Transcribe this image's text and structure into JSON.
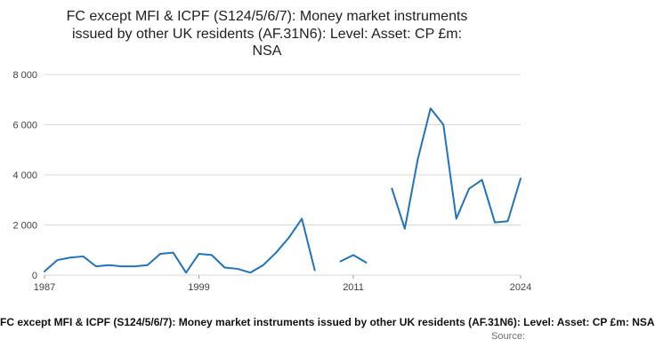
{
  "page": {
    "title": "FC except MFI & ICPF (S124/5/6/7): Money market instruments issued by other UK residents (AF.31N6): Level: Asset: CP £m: NSA",
    "footer_series_label": "FC except MFI & ICPF (S124/5/6/7): Money market instruments issued by other UK residents (AF.31N6): Level: Asset: CP £m: NSA",
    "source_label": "Source:"
  },
  "chart_data": {
    "type": "line",
    "title": "FC except MFI & ICPF (S124/5/6/7): Money market instruments issued by other UK residents (AF.31N6): Level: Asset: CP £m: NSA",
    "xlabel": "",
    "ylabel": "",
    "x": [
      1987,
      1988,
      1989,
      1990,
      1991,
      1992,
      1993,
      1994,
      1995,
      1996,
      1997,
      1998,
      1999,
      2000,
      2001,
      2002,
      2003,
      2004,
      2005,
      2006,
      2007,
      2008,
      2009,
      2010,
      2011,
      2012,
      2013,
      2014,
      2015,
      2016,
      2017,
      2018,
      2019,
      2020,
      2021,
      2022,
      2023,
      2024
    ],
    "series": [
      {
        "name": "Money market instruments issued by other UK residents (AF.31N6): Level: Asset: CP £m: NSA",
        "values": [
          150,
          600,
          700,
          750,
          350,
          400,
          350,
          350,
          400,
          850,
          900,
          100,
          850,
          800,
          300,
          250,
          100,
          400,
          900,
          1500,
          2250,
          200,
          null,
          550,
          800,
          500,
          null,
          3450,
          1850,
          4600,
          6650,
          6000,
          2250,
          3450,
          3800,
          2100,
          2150,
          3850
        ]
      }
    ],
    "ylim": [
      0,
      8000
    ],
    "yticks": [
      0,
      2000,
      4000,
      6000,
      8000
    ],
    "ytick_labels": [
      "0",
      "2 000",
      "4 000",
      "6 000",
      "8 000"
    ],
    "xtick_years": [
      1987,
      1999,
      2011,
      2024
    ],
    "grid": true,
    "legend": "none",
    "line_color": "#2073bc",
    "grid_color": "#d9d9d9",
    "tick_color": "#9d9d9d",
    "axis_text_color": "#414042"
  }
}
